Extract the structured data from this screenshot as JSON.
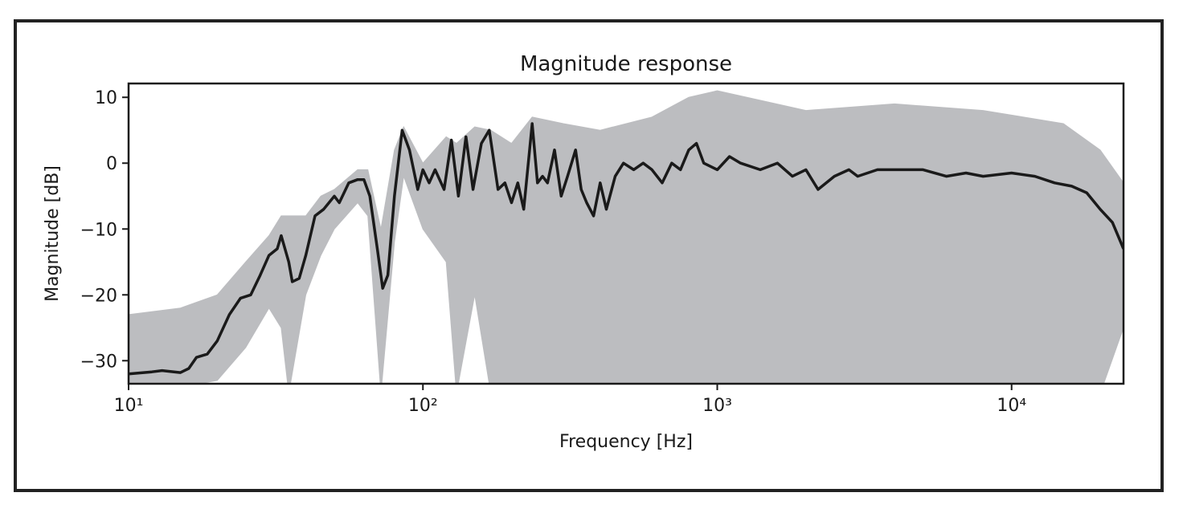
{
  "chart_data": {
    "type": "line",
    "title": "Magnitude response",
    "xlabel": "Frequency [Hz]",
    "ylabel": "Magnitude [dB]",
    "xscale": "log",
    "xlim": [
      10,
      24000
    ],
    "ylim": [
      -33.5,
      12.1
    ],
    "xticks": [
      {
        "value": 10,
        "label": "10¹"
      },
      {
        "value": 100,
        "label": "10²"
      },
      {
        "value": 1000,
        "label": "10³"
      },
      {
        "value": 10000,
        "label": "10⁴"
      }
    ],
    "yticks": [
      10,
      0,
      {
        "value": -10,
        "label": "−10"
      },
      {
        "value": -20,
        "label": "−20"
      },
      {
        "value": -30,
        "label": "−30"
      }
    ],
    "grid": false,
    "series": [
      {
        "color": "#bcbdc0",
        "x": [
          10,
          15,
          20,
          25,
          30,
          33,
          35,
          40,
          45,
          50,
          60,
          65,
          72,
          80,
          86,
          100,
          120,
          130,
          150,
          170,
          200,
          235,
          300,
          400,
          600,
          800,
          1000,
          2000,
          4000,
          8000,
          15000,
          20000,
          24000
        ],
        "upper": [
          -23,
          -22,
          -20,
          -15,
          -11,
          -8,
          -8,
          -8,
          -5,
          -4,
          -1,
          -1,
          -10,
          2,
          5.5,
          0,
          4,
          3,
          5.5,
          5,
          3,
          7,
          6,
          5,
          7,
          10,
          11,
          8,
          9,
          8,
          6,
          2,
          -3
        ],
        "lower": [
          -34,
          -34,
          -33,
          -28,
          -22,
          -25,
          -35,
          -20,
          -14,
          -10,
          -6,
          -8,
          -35,
          -12,
          -2,
          -10,
          -15,
          -35,
          -20,
          -35,
          -35,
          -35,
          -35,
          -35,
          -35,
          -35,
          -35,
          -35,
          -35,
          -35,
          -35,
          -35,
          -25
        ]
      },
      {
        "color": "#1a1a1a",
        "x": [
          10,
          12,
          13,
          15,
          16,
          17,
          18.5,
          20,
          22,
          24,
          26,
          28,
          30,
          32,
          33,
          35,
          36,
          38,
          40,
          43,
          46,
          50,
          52,
          56,
          60,
          63,
          66,
          70,
          73,
          76,
          80,
          85,
          90,
          96,
          100,
          105,
          110,
          118,
          125,
          132,
          140,
          148,
          158,
          168,
          180,
          190,
          200,
          210,
          220,
          235,
          245,
          255,
          265,
          280,
          295,
          310,
          330,
          345,
          360,
          380,
          400,
          420,
          450,
          480,
          520,
          560,
          600,
          650,
          700,
          750,
          800,
          850,
          900,
          1000,
          1100,
          1200,
          1400,
          1600,
          1800,
          2000,
          2200,
          2500,
          2800,
          3000,
          3500,
          4000,
          5000,
          6000,
          7000,
          8000,
          10000,
          12000,
          14000,
          16000,
          18000,
          20000,
          22000,
          24000
        ],
        "values": [
          -32,
          -31.7,
          -31.5,
          -31.8,
          -31.2,
          -29.5,
          -29,
          -27,
          -23,
          -20.5,
          -20,
          -17,
          -14,
          -13,
          -11,
          -15,
          -18,
          -17.5,
          -14,
          -8,
          -7,
          -5,
          -6,
          -3,
          -2.5,
          -2.5,
          -5,
          -13,
          -19,
          -17,
          -5,
          5,
          2,
          -4,
          -1,
          -3,
          -1,
          -4,
          3.5,
          -5,
          4,
          -4,
          3,
          5,
          -4,
          -3,
          -6,
          -3,
          -7,
          6,
          -3,
          -2,
          -3,
          2,
          -5,
          -2,
          2,
          -4,
          -6,
          -8,
          -3,
          -7,
          -2,
          0,
          -1,
          0,
          -1,
          -3,
          0,
          -1,
          2,
          3,
          0,
          -1,
          1,
          0,
          -1,
          0,
          -2,
          -1,
          -4,
          -2,
          -1,
          -2,
          -1,
          -1,
          -1,
          -2,
          -1.5,
          -2,
          -1.5,
          -2,
          -3,
          -3.5,
          -4.5,
          -7,
          -9,
          -13
        ]
      }
    ]
  }
}
